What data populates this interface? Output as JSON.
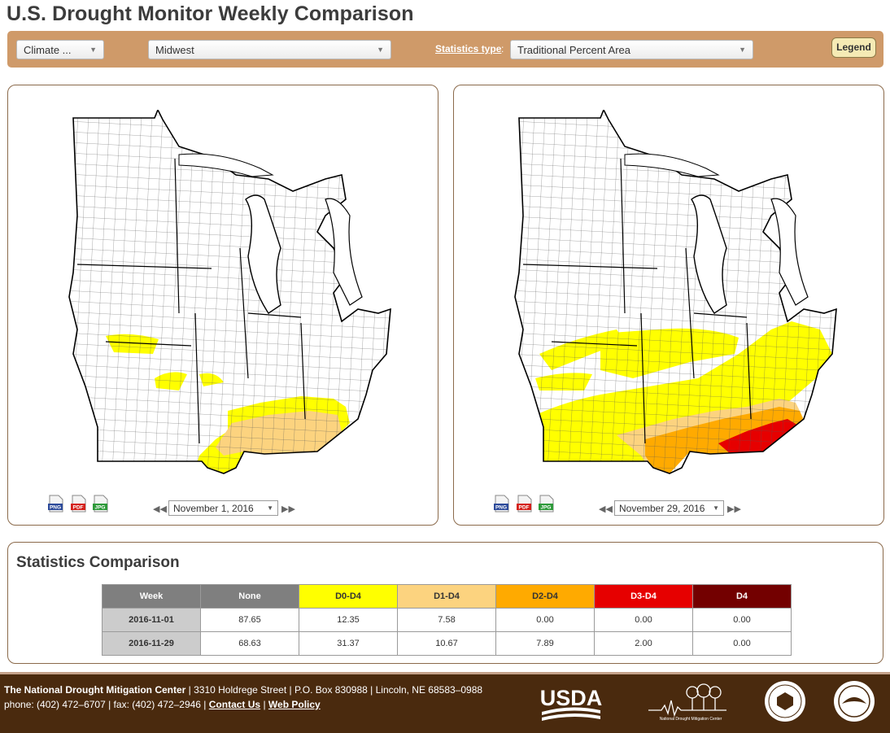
{
  "page": {
    "title": "U.S. Drought Monitor Weekly Comparison"
  },
  "toolbar": {
    "climate_select": "Climate ...",
    "region_select": "Midwest",
    "stats_type_label": "Statistics type",
    "stats_type_colon": ":",
    "stats_type_select": "Traditional Percent Area",
    "legend_button": "Legend"
  },
  "maps": [
    {
      "date": "November 1, 2016",
      "png": "PNG",
      "pdf": "PDF",
      "jpg": "JPG"
    },
    {
      "date": "November 29, 2016",
      "png": "PNG",
      "pdf": "PDF",
      "jpg": "JPG"
    }
  ],
  "stats": {
    "title": "Statistics Comparison",
    "headers": [
      "Week",
      "None",
      "D0-D4",
      "D1-D4",
      "D2-D4",
      "D3-D4",
      "D4"
    ],
    "header_colors": [
      "#7f7f7f",
      "#7f7f7f",
      "#ffff00",
      "#fcd37f",
      "#ffaa00",
      "#e60000",
      "#730000"
    ],
    "header_text_colors": [
      "#ffffff",
      "#ffffff",
      "#333333",
      "#333333",
      "#333333",
      "#ffffff",
      "#ffffff"
    ],
    "rows": [
      {
        "week": "2016-11-01",
        "values": [
          "87.65",
          "12.35",
          "7.58",
          "0.00",
          "0.00",
          "0.00"
        ]
      },
      {
        "week": "2016-11-29",
        "values": [
          "68.63",
          "31.37",
          "10.67",
          "7.89",
          "2.00",
          "0.00"
        ]
      }
    ]
  },
  "footer": {
    "org": "The National Drought Mitigation Center",
    "address": " | 3310 Holdrege Street | P.O. Box 830988 | Lincoln, NE 68583–0988",
    "phone": "phone: (402) 472–6707 | fax: (402) 472–2946 | ",
    "contact": "Contact Us",
    "sep": " | ",
    "policy": "Web Policy",
    "usda": "USDA",
    "ndmc": "National Drought Mitigation Center"
  },
  "colors": {
    "d0": "#ffff00",
    "d1": "#fcd37f",
    "d2": "#ffaa00",
    "d3": "#e60000",
    "d4": "#730000",
    "toolbar": "#cf9a69",
    "footer": "#4a2a0e"
  }
}
